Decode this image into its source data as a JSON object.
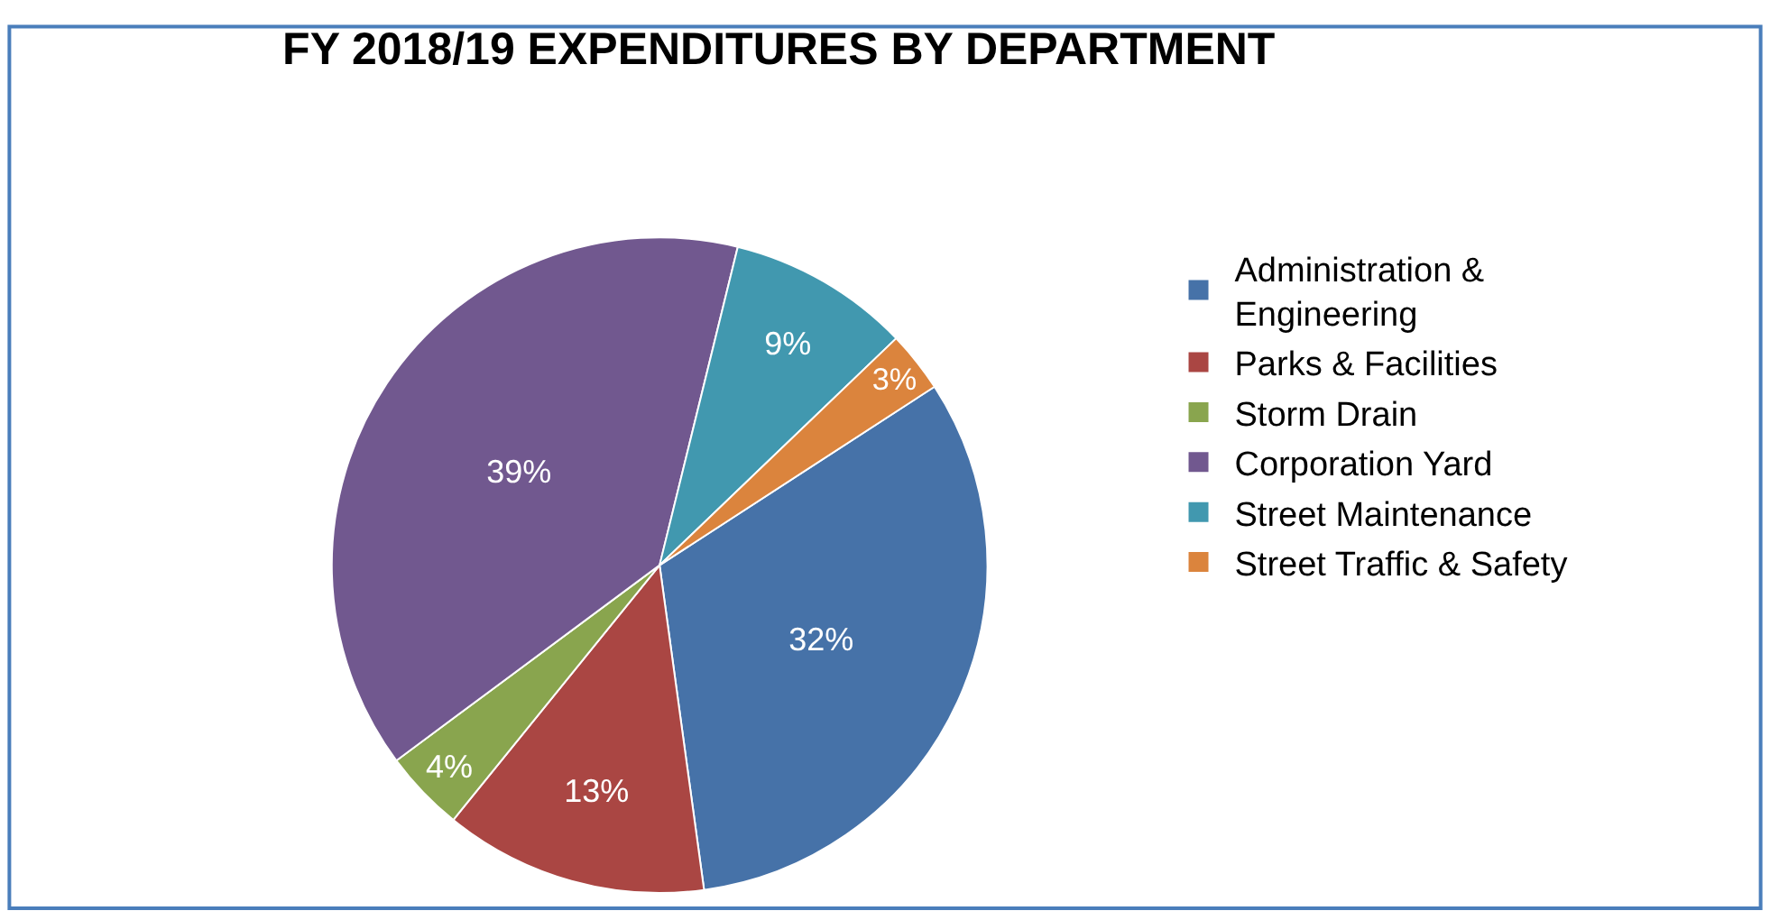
{
  "chart_data": {
    "type": "pie",
    "title": "FY 2018/19 EXPENDITURES BY DEPARTMENT",
    "categories": [
      "Administration & Engineering",
      "Parks & Facilities",
      "Storm Drain",
      "Corporation Yard",
      "Street Maintenance",
      "Street Traffic & Safety"
    ],
    "values": [
      32,
      13,
      4,
      39,
      9,
      3
    ],
    "colors": [
      "#4672a8",
      "#aa4643",
      "#89a54e",
      "#71588f",
      "#4198af",
      "#db843d"
    ],
    "value_labels": [
      "32%",
      "13%",
      "4%",
      "39%",
      "9%",
      "3%"
    ],
    "legend": "right"
  }
}
